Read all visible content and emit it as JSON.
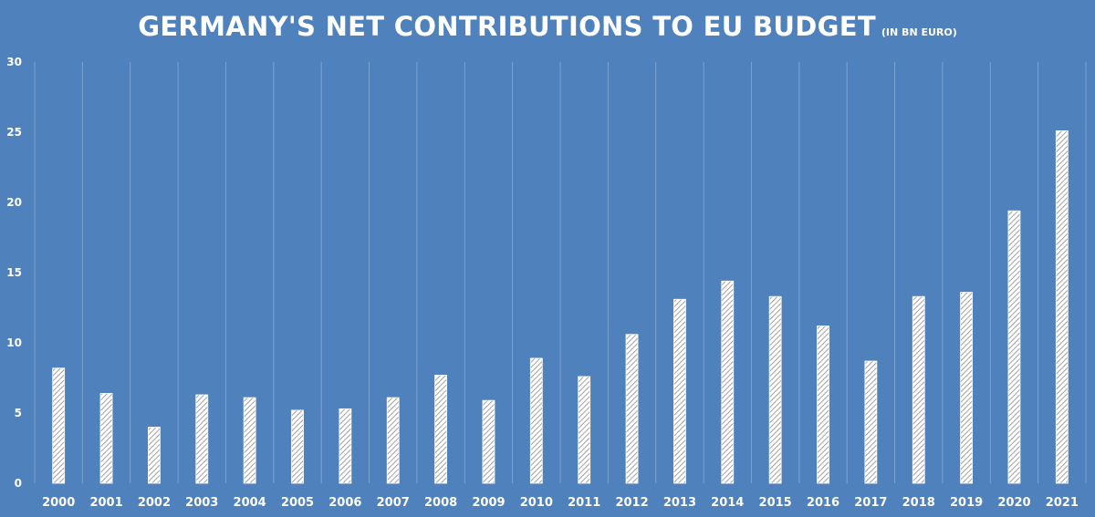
{
  "chart_data": {
    "type": "bar",
    "title": "GERMANY'S NET CONTRIBUTIONS TO EU BUDGET",
    "subtitle": "(IN BN EURO)",
    "xlabel": "",
    "ylabel": "",
    "ylim": [
      0,
      30
    ],
    "yticks": [
      "0",
      "5",
      "10",
      "15",
      "20",
      "25",
      "30"
    ],
    "grid": "vertical",
    "categories": [
      "2000",
      "2001",
      "2002",
      "2003",
      "2004",
      "2005",
      "2006",
      "2007",
      "2008",
      "2009",
      "2010",
      "2011",
      "2012",
      "2013",
      "2014",
      "2015",
      "2016",
      "2017",
      "2018",
      "2019",
      "2020",
      "2021"
    ],
    "values": [
      8.2,
      6.4,
      4.0,
      6.3,
      6.1,
      5.2,
      5.3,
      6.1,
      7.7,
      5.9,
      8.9,
      7.6,
      10.6,
      13.1,
      14.4,
      13.3,
      11.2,
      8.7,
      13.3,
      13.6,
      19.4,
      25.1
    ]
  },
  "colors": {
    "background": "#4f81bd",
    "bar_fill": "#ffffff",
    "bar_hatch": "#8a8a8a",
    "text": "#ffffff"
  }
}
